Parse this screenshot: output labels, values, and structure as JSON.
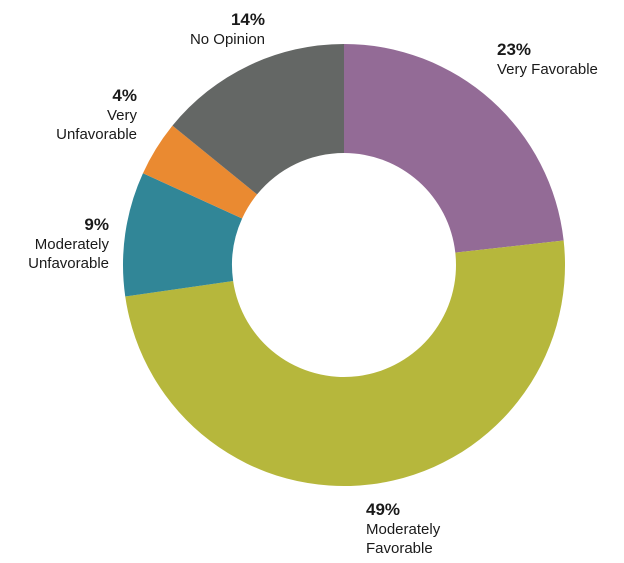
{
  "chart_data": {
    "type": "pie",
    "donut": true,
    "start_angle_deg": 0,
    "direction": "clockwise",
    "slices": [
      {
        "label": "Very Favorable",
        "value": 23,
        "pct_text": "23%",
        "lines": [
          "Very Favorable"
        ],
        "color": "#936b96"
      },
      {
        "label": "Moderately Favorable",
        "value": 49,
        "pct_text": "49%",
        "lines": [
          "Moderately",
          "Favorable"
        ],
        "color": "#b6b73c"
      },
      {
        "label": "Moderately Unfavorable",
        "value": 9,
        "pct_text": "9%",
        "lines": [
          "Moderately",
          "Unfavorable"
        ],
        "color": "#318697"
      },
      {
        "label": "Very Unfavorable",
        "value": 4,
        "pct_text": "4%",
        "lines": [
          "Very",
          "Unfavorable"
        ],
        "color": "#ea8a31"
      },
      {
        "label": "No Opinion",
        "value": 14,
        "pct_text": "14%",
        "lines": [
          "No Opinion"
        ],
        "color": "#646765"
      }
    ]
  }
}
